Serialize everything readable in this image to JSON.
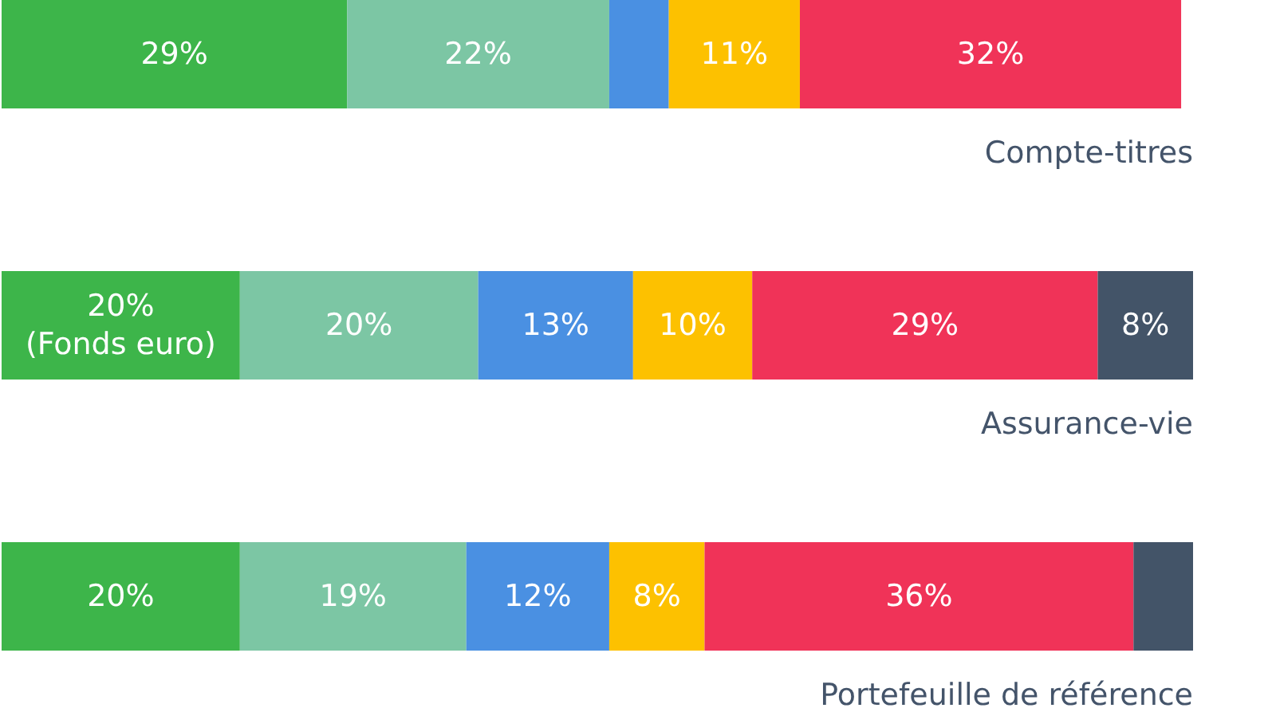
{
  "chart_data": {
    "type": "bar",
    "orientation": "horizontal",
    "stacked": true,
    "categories": [
      "Compte-titres",
      "Assurance-vie",
      "Portefeuille de référence"
    ],
    "series": [
      {
        "color": "#3db54a",
        "values": [
          29,
          20,
          20
        ],
        "value_labels": [
          "29%",
          "20%\n(Fonds euro)",
          "20%"
        ]
      },
      {
        "color": "#7cc6a4",
        "values": [
          22,
          20,
          19
        ],
        "value_labels": [
          "22%",
          "20%",
          "19%"
        ]
      },
      {
        "color": "#4a90e2",
        "values": [
          5,
          13,
          12
        ],
        "value_labels": [
          null,
          "13%",
          "12%"
        ]
      },
      {
        "color": "#fdc100",
        "values": [
          11,
          10,
          8
        ],
        "value_labels": [
          "11%",
          "10%",
          "8%"
        ]
      },
      {
        "color": "#f03358",
        "values": [
          32,
          29,
          36
        ],
        "value_labels": [
          "32%",
          "29%",
          "36%"
        ]
      },
      {
        "color": "#435468",
        "values": [
          null,
          8,
          5
        ],
        "value_labels": [
          null,
          "8%",
          null
        ]
      }
    ],
    "xlim": [
      0,
      100
    ],
    "tick_labels": false
  }
}
